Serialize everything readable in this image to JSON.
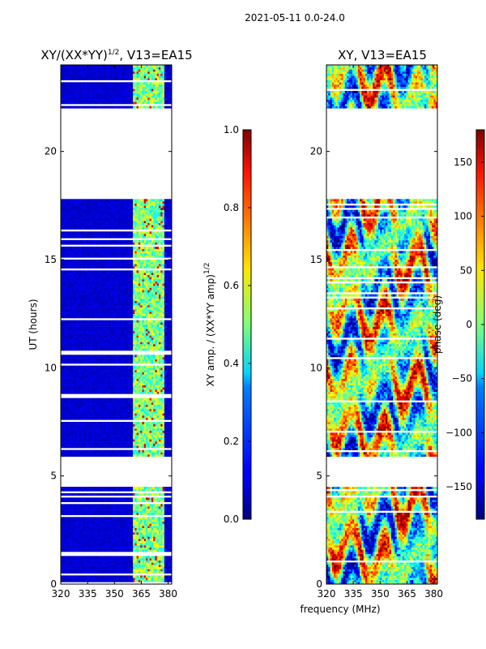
{
  "figure_title": "2021-05-11 0.0-24.0",
  "shared_xlabel": "frequency (MHz)",
  "chart_data": [
    {
      "type": "heatmap",
      "title": "XY/(XX*YY)",
      "title_superscript": "1/2",
      "title_suffix": ", V13=EA15",
      "xlabel": "",
      "ylabel": "UT (hours)",
      "xlim": [
        320,
        382
      ],
      "ylim": [
        0,
        24
      ],
      "xticks": [
        "320",
        "335",
        "350",
        "365",
        "380"
      ],
      "yticks": [
        "0",
        "5",
        "10",
        "15",
        "20"
      ],
      "colormap": "jet",
      "colorbar": {
        "label": "XY amp. / (XX*YY amp)",
        "label_superscript": "1/2",
        "range": [
          0.0,
          1.0
        ],
        "ticks": [
          "0.0",
          "0.2",
          "0.4",
          "0.6",
          "0.8",
          "1.0"
        ]
      },
      "gaps_hours": [
        [
          4.5,
          5.9
        ],
        [
          17.8,
          22.0
        ]
      ],
      "notes": "amplitude near 0 (dark blue) below ~360 MHz; elevated (cyan-yellow, occasional red) in ~361-377 MHz band"
    },
    {
      "type": "heatmap",
      "title": "XY, V13=EA15",
      "xlabel": "",
      "ylabel": "",
      "xlim": [
        320,
        382
      ],
      "ylim": [
        0,
        24
      ],
      "xticks": [
        "320",
        "335",
        "350",
        "365",
        "380"
      ],
      "yticks": [
        "0",
        "5",
        "10",
        "15",
        "20"
      ],
      "colormap": "jet",
      "colorbar": {
        "label": "phase (deg)",
        "range": [
          -180,
          180
        ],
        "ticks": [
          "−150",
          "−100",
          "−50",
          "0",
          "50",
          "100",
          "150"
        ]
      },
      "gaps_hours": [
        [
          4.5,
          5.9
        ],
        [
          17.8,
          22.0
        ]
      ],
      "notes": "phase spans full range with banded structure"
    }
  ]
}
